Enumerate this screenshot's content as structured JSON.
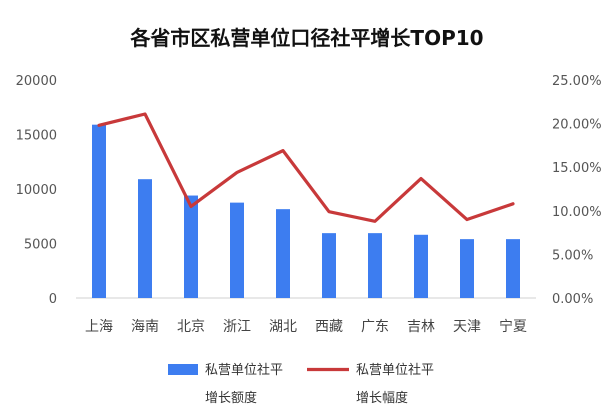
{
  "chart_data": {
    "type": "bar",
    "title": "各省市区私营单位口径社平增长TOP10",
    "categories": [
      "上海",
      "海南",
      "北京",
      "浙江",
      "湖北",
      "西藏",
      "广东",
      "吉林",
      "天津",
      "宁夏"
    ],
    "series": [
      {
        "name": "私营单位社平增长额度",
        "type": "bar",
        "axis": "left",
        "color": "#3d7df0",
        "values": [
          15900,
          10900,
          9400,
          8750,
          8150,
          5950,
          5950,
          5800,
          5400,
          5400
        ]
      },
      {
        "name": "私营单位社平增长幅度",
        "type": "line",
        "axis": "right",
        "color": "#c8393a",
        "values": [
          19.8,
          21.1,
          10.5,
          14.4,
          16.9,
          9.9,
          8.8,
          13.7,
          9.0,
          10.8
        ]
      }
    ],
    "ylim": [
      0,
      20000
    ],
    "ytick_labels": [
      "0",
      "5000",
      "10000",
      "15000",
      "20000"
    ],
    "y2lim": [
      0,
      25
    ],
    "y2tick_labels": [
      "0.00%",
      "5.00%",
      "10.00%",
      "15.00%",
      "20.00%",
      "25.00%"
    ],
    "legend": {
      "position": "bottom",
      "items": [
        {
          "line1": "私营单位社平",
          "line2": "增长额度",
          "color": "#3d7df0",
          "kind": "bar"
        },
        {
          "line1": "私营单位社平",
          "line2": "增长幅度",
          "color": "#c8393a",
          "kind": "line"
        }
      ]
    },
    "grid": false
  }
}
